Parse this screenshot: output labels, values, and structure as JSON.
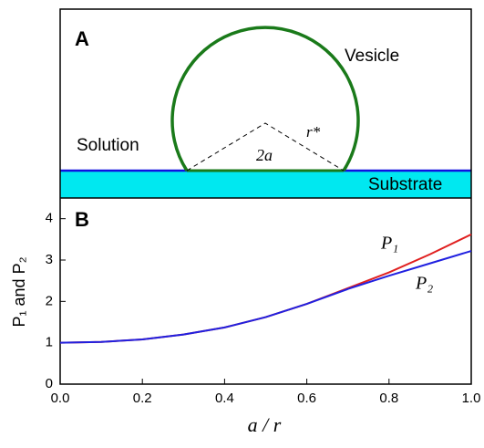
{
  "diagram": {
    "panel_label": "A",
    "vesicle_label": "Vesicle",
    "solution_label": "Solution",
    "substrate_label": "Substrate",
    "radius_label": "r*",
    "base_label": "2a"
  },
  "chart_data": {
    "type": "line",
    "panel_label": "B",
    "x_label": "a / r",
    "y_label": "P₁ and P₂",
    "x": [
      0,
      0.1,
      0.2,
      0.3,
      0.4,
      0.5,
      0.6,
      0.7,
      0.8,
      0.9,
      1.0
    ],
    "series": [
      {
        "name": "P₁",
        "color": "#e02020",
        "values": [
          1,
          1.02,
          1.08,
          1.2,
          1.37,
          1.62,
          1.94,
          2.32,
          2.7,
          3.14,
          3.62
        ]
      },
      {
        "name": "P₂",
        "color": "#2020e0",
        "values": [
          1,
          1.02,
          1.08,
          1.2,
          1.37,
          1.62,
          1.94,
          2.3,
          2.62,
          2.92,
          3.22
        ]
      }
    ],
    "xlim": [
      0,
      1
    ],
    "ylim": [
      0,
      4.5
    ],
    "xticks": [
      {
        "value": 0,
        "label": "0.0"
      },
      {
        "value": 0.2,
        "label": "0.2"
      },
      {
        "value": 0.4,
        "label": "0.4"
      },
      {
        "value": 0.6,
        "label": "0.6"
      },
      {
        "value": 0.8,
        "label": "0.8"
      },
      {
        "value": 1,
        "label": "1.0"
      }
    ],
    "yticks": [
      0,
      1,
      2,
      3,
      4
    ]
  }
}
